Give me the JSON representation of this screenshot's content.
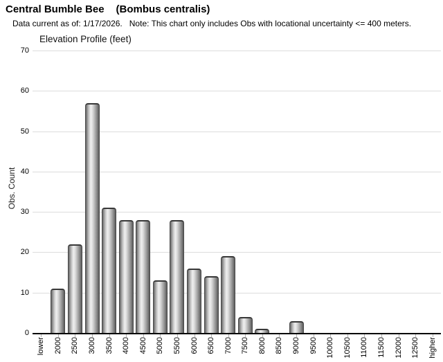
{
  "header": {
    "title_common": "Central Bumble Bee",
    "title_scientific": "(Bombus centralis)",
    "data_current": "Data current as of: 1/17/2026.",
    "note": "Note: This chart only includes Obs with locational uncertainty <= 400 meters."
  },
  "chart_data": {
    "type": "bar",
    "title": "Elevation Profile (feet)",
    "xlabel": "",
    "ylabel": "Obs. Count",
    "ylim": [
      0,
      70
    ],
    "yticks": [
      0,
      10,
      20,
      30,
      40,
      50,
      60,
      70
    ],
    "grid": "horizontal",
    "legend": "none",
    "bar_style": "gray 3D cylinder gradient",
    "categories": [
      "lower",
      "2000",
      "2500",
      "3000",
      "3500",
      "4000",
      "4500",
      "5000",
      "5500",
      "6000",
      "6500",
      "7000",
      "7500",
      "8000",
      "8500",
      "9000",
      "9500",
      "10000",
      "10500",
      "11000",
      "11500",
      "12000",
      "12500",
      "higher"
    ],
    "values": [
      0,
      11,
      22,
      57,
      31,
      28,
      28,
      13,
      28,
      16,
      14,
      19,
      4,
      1,
      0,
      3,
      0,
      0,
      0,
      0,
      0,
      0,
      0,
      0
    ]
  },
  "colors": {
    "background": "#ffffff",
    "text": "#000000",
    "gridline": "#dcdcdc",
    "axis": "#000000",
    "tick": "#b0b0b0",
    "bar_dark": "#5b5b5b",
    "bar_light": "#efefef",
    "bar_edge": "#4a4a4a"
  }
}
